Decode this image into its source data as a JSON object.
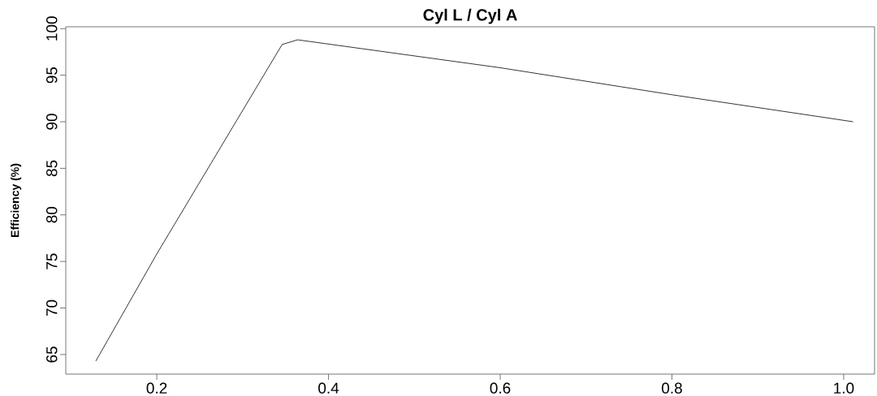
{
  "chart_data": {
    "type": "line",
    "title": "Cyl L / Cyl A",
    "ylabel": "Efficiency (%)",
    "x": [
      0.129,
      0.2,
      0.346,
      0.364,
      0.6,
      0.8,
      1.011
    ],
    "series": [
      {
        "color": "#000000",
        "values": [
          64.3,
          75.8,
          98.3,
          98.8,
          95.8,
          92.9,
          90.0
        ]
      }
    ],
    "xlim": [
      0.094,
      1.036
    ],
    "ylim": [
      62.9,
      100.2
    ],
    "xticks": [
      0.2,
      0.4,
      0.6,
      0.8,
      {
        "value": 1.0,
        "label": "1.0"
      }
    ],
    "yticks": [
      65,
      70,
      75,
      80,
      85,
      90,
      95,
      100
    ],
    "grid": false,
    "marker": "none",
    "line_style": "solid"
  }
}
